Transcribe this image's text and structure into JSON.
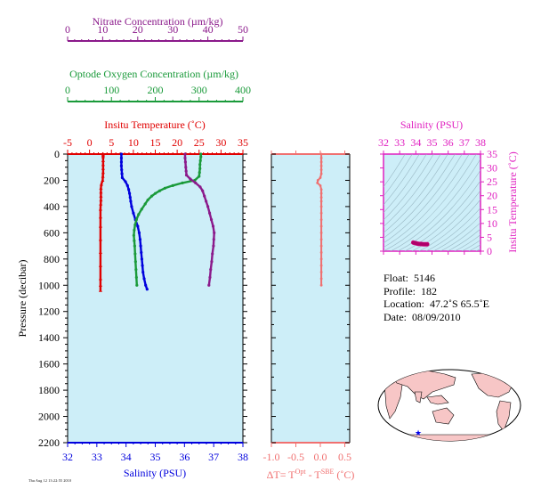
{
  "colors": {
    "temperature": "#e00000",
    "salinity": "#0000dd",
    "oxygen": "#1a9a3a",
    "nitrate": "#8b1a8b",
    "deltaT": "#f07070",
    "ts_axis": "#e020c0",
    "panel_bg": "#cdeef8"
  },
  "nitrate_axis": {
    "label": "Nitrate Concentration (µm/kg)",
    "ticks": [
      "0",
      "10",
      "20",
      "30",
      "40",
      "50"
    ]
  },
  "oxygen_axis": {
    "label": "Optode Oxygen Concentration (µm/kg)",
    "ticks": [
      "0",
      "100",
      "200",
      "300",
      "400"
    ]
  },
  "temp_axis": {
    "label": "Insitu Temperature (˚C)",
    "ticks": [
      "-5",
      "0",
      "5",
      "10",
      "15",
      "20",
      "25",
      "30",
      "35"
    ]
  },
  "salinity_axis": {
    "label": "Salinity (PSU)",
    "ticks": [
      "32",
      "33",
      "34",
      "35",
      "36",
      "37",
      "38"
    ]
  },
  "pressure_axis": {
    "label": "Pressure (decibar)",
    "ticks": [
      "0",
      "200",
      "400",
      "600",
      "800",
      "1000",
      "1200",
      "1400",
      "1600",
      "1800",
      "2000",
      "2200"
    ]
  },
  "dt_axis": {
    "label": "ΔT= T",
    "sup1": "Opt",
    "mid": " - T",
    "sup2": "SBE",
    "unit": " (˚C)",
    "ticks": [
      "-1.0",
      "-0.5",
      "0.0",
      "0.5"
    ]
  },
  "ts_panel": {
    "title": "Salinity (PSU)",
    "xticks": [
      "32",
      "33",
      "34",
      "35",
      "36",
      "37",
      "38"
    ],
    "ylabel": "Insitu Temperature (˚C)",
    "yticks": [
      "0",
      "5",
      "10",
      "15",
      "20",
      "25",
      "30",
      "35"
    ]
  },
  "info": {
    "float_label": "Float:",
    "float_value": "5146",
    "profile_label": "Profile:",
    "profile_value": "182",
    "location_label": "Location:",
    "location_value": "47.2˚S  65.5˚E",
    "date_label": "Date:",
    "date_value": "08/09/2010"
  },
  "stamp": "Thu Aug 12 13:22:55 2010",
  "chart_data": [
    {
      "type": "line",
      "name": "profile_panel",
      "pressure_range": [
        0,
        2200
      ],
      "temperature_range": [
        -5,
        35
      ],
      "salinity_range": [
        32,
        38
      ],
      "oxygen_range": [
        0,
        400
      ],
      "nitrate_range": [
        0,
        50
      ],
      "series": [
        {
          "name": "temperature",
          "pressure": [
            0,
            10,
            20,
            50,
            80,
            110,
            140,
            170,
            200,
            230,
            260,
            290,
            320,
            350,
            380,
            420,
            480,
            550,
            650,
            750,
            850,
            950,
            1000,
            1040
          ],
          "values": [
            3.1,
            3.1,
            3.1,
            3.1,
            3.1,
            3.1,
            3.1,
            3.05,
            3.0,
            2.7,
            2.6,
            2.6,
            2.6,
            2.6,
            2.55,
            2.5,
            2.5,
            2.5,
            2.5,
            2.5,
            2.5,
            2.5,
            2.5,
            2.5
          ]
        },
        {
          "name": "salinity",
          "pressure": [
            0,
            30,
            60,
            90,
            120,
            150,
            180,
            210,
            240,
            270,
            300,
            330,
            360,
            400,
            450,
            500,
            550,
            600,
            650,
            700,
            750,
            800,
            850,
            900,
            950,
            1000,
            1030
          ],
          "values": [
            33.84,
            33.84,
            33.84,
            33.84,
            33.85,
            33.86,
            33.87,
            33.98,
            34.05,
            34.09,
            34.12,
            34.14,
            34.16,
            34.19,
            34.25,
            34.32,
            34.4,
            34.45,
            34.48,
            34.5,
            34.52,
            34.54,
            34.56,
            34.58,
            34.62,
            34.67,
            34.72
          ]
        },
        {
          "name": "oxygen",
          "pressure": [
            0,
            20,
            50,
            80,
            110,
            140,
            170,
            200,
            220,
            240,
            260,
            280,
            300,
            320,
            350,
            380,
            420,
            460,
            500,
            540,
            580,
            620,
            660,
            700,
            760,
            820,
            880,
            940,
            1000
          ],
          "values": [
            304,
            304,
            303,
            302,
            302,
            301,
            300,
            290,
            262,
            240,
            222,
            210,
            200,
            192,
            183,
            177,
            169,
            162,
            157,
            154,
            152,
            151,
            152,
            153,
            154,
            155,
            156,
            157,
            158
          ]
        },
        {
          "name": "nitrate",
          "pressure": [
            0,
            30,
            60,
            100,
            130,
            160,
            190,
            220,
            250,
            280,
            320,
            360,
            400,
            450,
            500,
            550,
            600,
            650,
            700,
            760,
            820,
            880,
            940,
            1000
          ],
          "values": [
            33.5,
            33.5,
            33.6,
            33.7,
            33.8,
            33.9,
            35.0,
            36.5,
            37.8,
            38.5,
            39.0,
            39.5,
            40.0,
            40.5,
            41.0,
            41.5,
            41.8,
            41.7,
            41.6,
            41.3,
            41.1,
            40.8,
            40.6,
            40.3
          ]
        }
      ]
    },
    {
      "type": "line",
      "name": "delta_t_panel",
      "pressure_range": [
        0,
        2200
      ],
      "x_range": [
        -1.0,
        0.6
      ],
      "series": [
        {
          "name": "deltaT",
          "pressure": [
            0,
            30,
            60,
            90,
            120,
            150,
            180,
            200,
            220,
            240,
            270,
            300,
            330,
            360,
            400,
            450,
            500,
            550,
            600,
            650,
            700,
            750,
            800,
            850,
            900,
            950,
            1000
          ],
          "values": [
            0.02,
            0.02,
            0.02,
            0.02,
            0.02,
            0.02,
            0.0,
            -0.05,
            -0.06,
            0.0,
            0.02,
            0.02,
            0.02,
            0.02,
            0.02,
            0.02,
            0.02,
            0.02,
            0.02,
            0.02,
            0.02,
            0.02,
            0.02,
            0.02,
            0.02,
            0.02,
            0.02
          ]
        }
      ]
    },
    {
      "type": "scatter",
      "name": "ts_panel",
      "x_range": [
        32,
        38
      ],
      "y_range": [
        0,
        35
      ],
      "series": [
        {
          "name": "ts",
          "x": [
            33.84,
            33.9,
            34.0,
            34.1,
            34.2,
            34.3,
            34.4,
            34.5,
            34.6,
            34.7
          ],
          "y": [
            3.1,
            3.0,
            2.9,
            2.7,
            2.6,
            2.6,
            2.55,
            2.5,
            2.5,
            2.5
          ]
        }
      ]
    }
  ]
}
